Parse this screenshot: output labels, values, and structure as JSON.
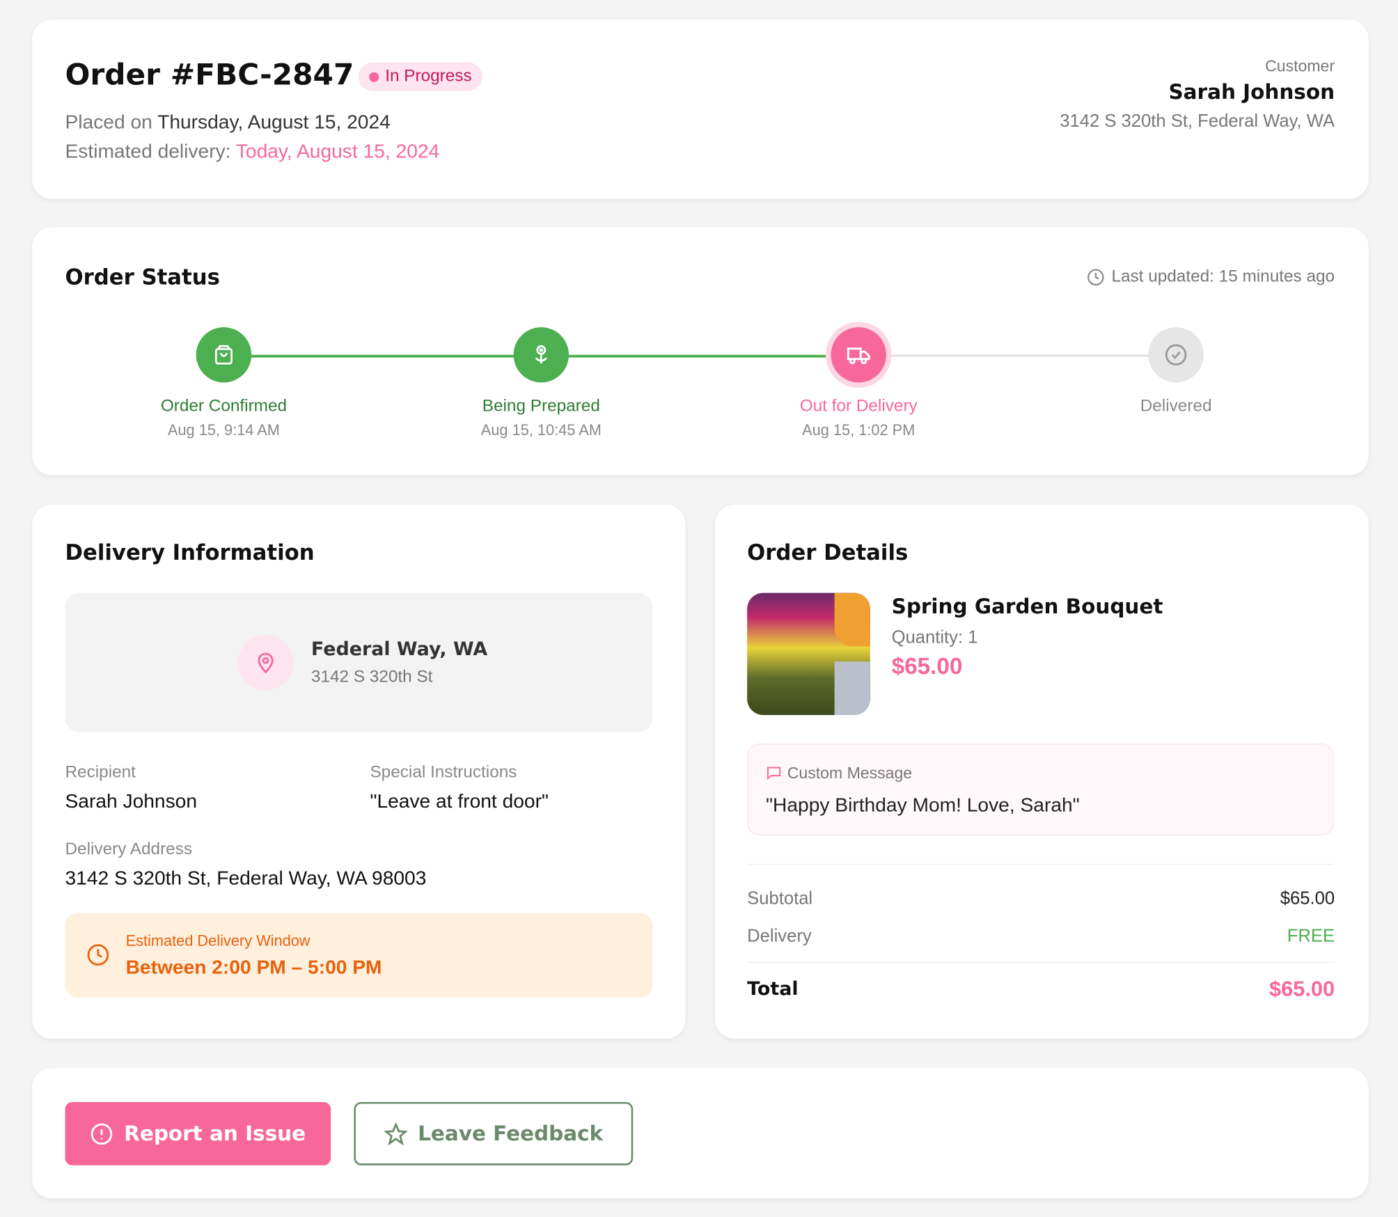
{
  "header": {
    "order_title": "Order #FBC-2847",
    "status_badge": "In Progress",
    "placed_prefix": "Placed on",
    "placed_date": "Thursday, August 15, 2024",
    "est_prefix": "Estimated delivery:",
    "est_date": "Today, August 15, 2024",
    "customer_label": "Customer",
    "customer_name": "Sarah Johnson",
    "customer_address": "3142 S 320th St, Federal Way, WA"
  },
  "status": {
    "title": "Order Status",
    "last_updated": "Last updated: 15 minutes ago",
    "steps": [
      {
        "label": "Order Confirmed",
        "time": "Aug 15, 9:14 AM",
        "state": "complete",
        "icon": "shopping-bag-icon"
      },
      {
        "label": "Being Prepared",
        "time": "Aug 15, 10:45 AM",
        "state": "complete",
        "icon": "flower-icon"
      },
      {
        "label": "Out for Delivery",
        "time": "Aug 15, 1:02 PM",
        "state": "current",
        "icon": "truck-icon"
      },
      {
        "label": "Delivered",
        "time": "",
        "state": "pending",
        "icon": "check-circle-icon"
      }
    ]
  },
  "delivery": {
    "title": "Delivery Information",
    "map_city": "Federal Way, WA",
    "map_street": "3142 S 320th St",
    "recipient_label": "Recipient",
    "recipient": "Sarah Johnson",
    "instructions_label": "Special Instructions",
    "instructions": "\"Leave at front door\"",
    "address_label": "Delivery Address",
    "address": "3142 S 320th St, Federal Way, WA 98003",
    "window_label": "Estimated Delivery Window",
    "window": "Between 2:00 PM – 5:00 PM"
  },
  "details": {
    "title": "Order Details",
    "product_name": "Spring Garden Bouquet",
    "quantity": "Quantity: 1",
    "price": "$65.00",
    "message_label": "Custom Message",
    "message": "\"Happy Birthday Mom! Love, Sarah\"",
    "subtotal_label": "Subtotal",
    "subtotal": "$65.00",
    "delivery_label": "Delivery",
    "delivery": "FREE",
    "total_label": "Total",
    "total": "$65.00"
  },
  "actions": {
    "report": "Report an Issue",
    "feedback": "Leave Feedback"
  },
  "colors": {
    "pink": "#f7679a",
    "green": "#4caf50",
    "orange": "#e8620c"
  }
}
